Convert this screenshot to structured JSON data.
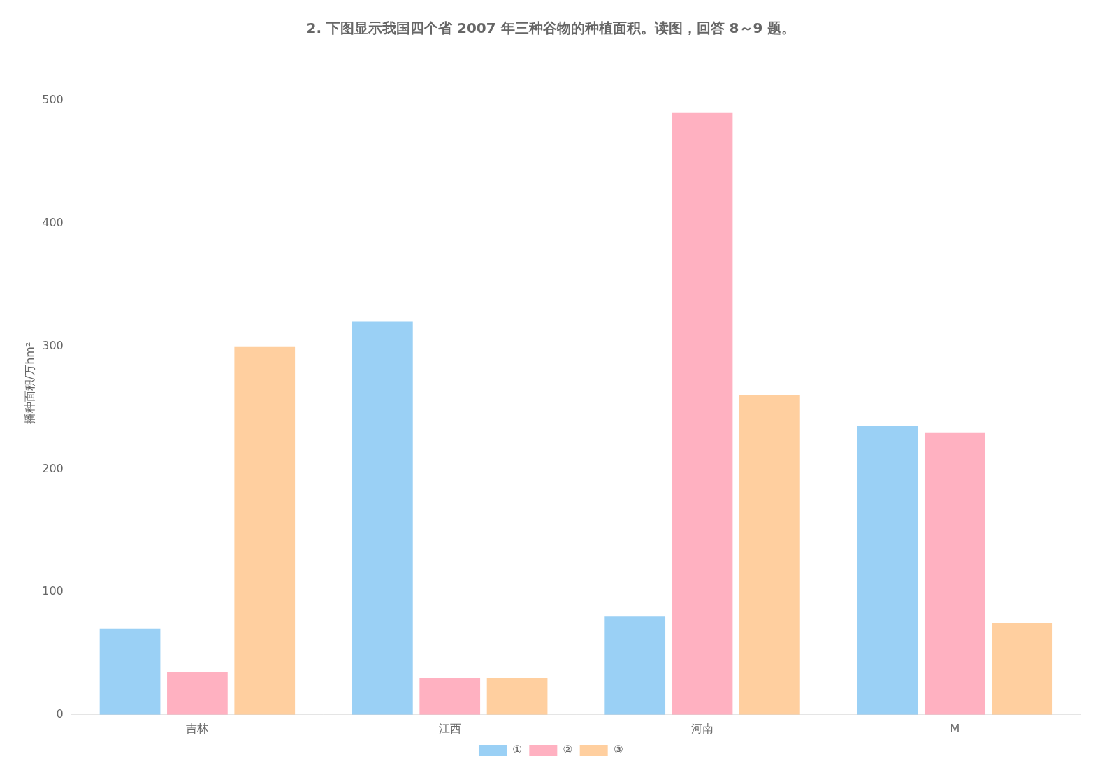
{
  "chart_data": {
    "type": "bar",
    "title": "2. 下图显示我国四个省 2007 年三种谷物的种植面积。读图，回答 8～9 题。",
    "ylabel": "播种面积/万hm²",
    "categories": [
      "吉林",
      "江西",
      "河南",
      "M"
    ],
    "series": [
      {
        "name": "①",
        "values": [
          70,
          320,
          80,
          235
        ]
      },
      {
        "name": "②",
        "values": [
          35,
          30,
          490,
          230
        ]
      },
      {
        "name": "③",
        "values": [
          300,
          30,
          260,
          75
        ]
      }
    ],
    "ylim": [
      0,
      540
    ],
    "yticks": [
      0,
      100,
      200,
      300,
      400,
      500
    ],
    "grid": false,
    "legend": "bottom"
  }
}
